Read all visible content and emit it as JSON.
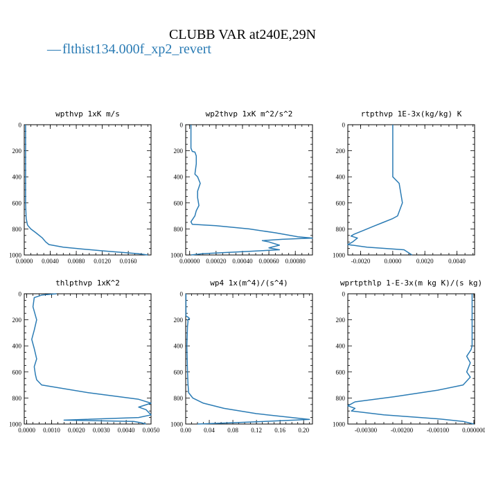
{
  "figure": {
    "title": "CLUBB VAR at240E,29N",
    "legend_label": "flthist134.000f_xp2_revert",
    "legend_marker": "—"
  },
  "colors": {
    "series": "#2a7bb4",
    "axes": "#000000",
    "text": "#000000"
  },
  "chart_data": [
    {
      "type": "line",
      "title": "wpthvp   1xK m/s",
      "xlim": [
        0,
        0.0195
      ],
      "ylim": [
        1000,
        0
      ],
      "xticks": [
        0,
        0.004,
        0.008,
        0.012,
        0.016
      ],
      "xtick_labels": [
        "0.0000",
        "0.0040",
        "0.0080",
        "0.0120",
        "0.0160"
      ],
      "yticks": [
        0,
        200,
        400,
        600,
        800,
        1000
      ],
      "ytick_labels": [
        "0",
        "200",
        "400",
        "600",
        "800",
        "1000"
      ],
      "series": [
        {
          "x": [
            0.0002,
            0.0002,
            0.0002,
            0.0002,
            0.0003,
            0.0005,
            0.001,
            0.0018,
            0.0028,
            0.0033,
            0.0038,
            0.006,
            0.009,
            0.012,
            0.015,
            0.0175,
            0.019
          ],
          "y": [
            0,
            200,
            400,
            600,
            720,
            770,
            800,
            830,
            870,
            900,
            920,
            940,
            955,
            968,
            980,
            990,
            1000
          ]
        }
      ]
    },
    {
      "type": "line",
      "title": "wp2thvp   1xK m^2/s^2",
      "xlim": [
        -3e-05,
        0.00093
      ],
      "ylim": [
        1000,
        0
      ],
      "xticks": [
        0,
        0.0002,
        0.0004,
        0.0006,
        0.0008
      ],
      "xtick_labels": [
        "0.00000",
        "0.00020",
        "0.00040",
        "0.00060",
        "0.00080"
      ],
      "yticks": [
        0,
        200,
        400,
        600,
        800,
        1000
      ],
      "ytick_labels": [
        "0",
        "200",
        "400",
        "600",
        "800",
        "1000"
      ],
      "series": [
        {
          "x": [
            1e-05,
            1e-05,
            2e-05,
            4e-05,
            5e-05,
            5e-05,
            4e-05,
            6e-05,
            8e-05,
            6e-05,
            6e-05,
            7e-05,
            5e-05,
            4e-05,
            1e-05,
            2e-05,
            0.0002,
            0.00045,
            0.00065,
            0.00082,
            0.00093,
            0.0007,
            0.00055,
            0.0006,
            0.00068,
            0.0006,
            0.00068,
            0.0004,
            0.0001,
            1e-05
          ],
          "y": [
            0,
            180,
            205,
            210,
            240,
            300,
            380,
            400,
            450,
            510,
            560,
            620,
            660,
            700,
            745,
            765,
            775,
            800,
            830,
            860,
            870,
            880,
            890,
            900,
            925,
            945,
            960,
            975,
            990,
            1000
          ]
        }
      ]
    },
    {
      "type": "line",
      "title": "rtpthvp   1E-3x(kg/kg) K",
      "xlim": [
        -0.0028,
        0.0051
      ],
      "ylim": [
        1000,
        0
      ],
      "xticks": [
        -0.002,
        0,
        0.002,
        0.004
      ],
      "xtick_labels": [
        "-0.0020",
        "0.0000",
        "0.0020",
        "0.0040"
      ],
      "yticks": [
        0,
        200,
        400,
        600,
        800,
        1000
      ],
      "ytick_labels": [
        "0",
        "200",
        "400",
        "600",
        "800",
        "1000"
      ],
      "series": [
        {
          "x": [
            0.0,
            0.0,
            0.0,
            0.0004,
            0.0006,
            0.0003,
            0.0,
            -0.0006,
            -0.0012,
            -0.0018,
            -0.0024,
            -0.0026,
            -0.0022,
            -0.0025,
            -0.0028,
            -0.0016,
            0.0007,
            0.0012
          ],
          "y": [
            0,
            200,
            400,
            450,
            600,
            700,
            720,
            750,
            780,
            810,
            840,
            855,
            870,
            900,
            920,
            940,
            960,
            1000
          ]
        }
      ]
    },
    {
      "type": "line",
      "title": "thlpthvp   1xK^2",
      "xlim": [
        -0.0001,
        0.005
      ],
      "ylim": [
        1000,
        0
      ],
      "xticks": [
        0,
        0.001,
        0.002,
        0.003,
        0.004,
        0.005
      ],
      "xtick_labels": [
        "0.0000",
        "0.0010",
        "0.0020",
        "0.0030",
        "0.0040",
        "0.0050"
      ],
      "yticks": [
        0,
        200,
        400,
        600,
        800,
        1000
      ],
      "ytick_labels": [
        "0",
        "200",
        "400",
        "600",
        "800",
        "1000"
      ],
      "series": [
        {
          "x": [
            0.0012,
            0.0006,
            0.0003,
            0.00025,
            0.0004,
            0.0003,
            0.0002,
            0.0003,
            0.0004,
            0.0003,
            0.00035,
            0.0004,
            0.0006,
            0.0025,
            0.0045,
            0.005,
            0.0045,
            0.0048,
            0.005,
            0.0045,
            0.0015,
            0.0043,
            0.0046,
            0.0048
          ],
          "y": [
            0,
            10,
            30,
            100,
            200,
            280,
            350,
            420,
            500,
            560,
            620,
            660,
            700,
            760,
            810,
            840,
            870,
            890,
            930,
            950,
            970,
            980,
            990,
            1000
          ]
        }
      ]
    },
    {
      "type": "line",
      "title": "wp4   1x(m^4)/(s^4)",
      "xlim": [
        0,
        0.215
      ],
      "ylim": [
        1000,
        0
      ],
      "xticks": [
        0,
        0.04,
        0.08,
        0.12,
        0.16,
        0.2
      ],
      "xtick_labels": [
        "0.00",
        "0.04",
        "0.08",
        "0.12",
        "0.16",
        "0.20"
      ],
      "yticks": [
        0,
        200,
        400,
        600,
        800,
        1000
      ],
      "ytick_labels": [
        "0",
        "200",
        "400",
        "600",
        "800",
        "1000"
      ],
      "series": [
        {
          "x": [
            0.0005,
            0.0005,
            0.004,
            0.0065,
            0.003,
            0.004,
            0.003,
            0.002,
            0.003,
            0.004,
            0.005,
            0.012,
            0.03,
            0.065,
            0.12,
            0.18,
            0.21,
            0.16,
            0.08,
            0.02
          ],
          "y": [
            0,
            170,
            180,
            190,
            200,
            210,
            250,
            400,
            600,
            700,
            760,
            800,
            840,
            880,
            920,
            950,
            965,
            975,
            990,
            1000
          ]
        }
      ]
    },
    {
      "type": "line",
      "title": "wprtpthlp   1-E-3x(m kg K)/(s kg)",
      "xlim": [
        -0.0035,
        2e-05
      ],
      "ylim": [
        1000,
        0
      ],
      "xticks": [
        -0.003,
        -0.002,
        -0.001,
        0
      ],
      "xtick_labels": [
        "-0.00300",
        "-0.00200",
        "-0.00100",
        "0.000000"
      ],
      "yticks": [
        0,
        200,
        400,
        600,
        800,
        1000
      ],
      "ytick_labels": [
        "0",
        "200",
        "400",
        "600",
        "800",
        "1000"
      ],
      "series": [
        {
          "x": [
            -5e-05,
            -5e-05,
            -5e-05,
            -8e-05,
            -0.0002,
            -0.0001,
            -0.0002,
            -0.0001,
            -0.0003,
            -0.001,
            -0.0022,
            -0.0033,
            -0.0035,
            -0.0033,
            -0.0034,
            -0.0025,
            -0.001,
            -0.0003,
            0.0
          ],
          "y": [
            0,
            200,
            400,
            430,
            480,
            530,
            600,
            640,
            700,
            740,
            790,
            830,
            860,
            880,
            900,
            930,
            960,
            980,
            1000
          ]
        }
      ]
    }
  ]
}
